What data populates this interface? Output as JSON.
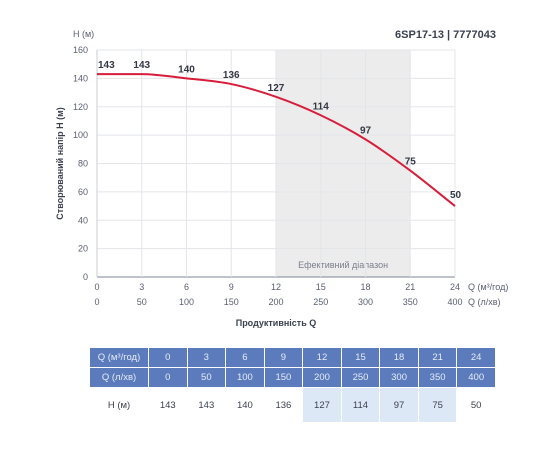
{
  "title": "6SP17-13 | 7777043",
  "chart_data": {
    "type": "line",
    "y_unit_label": "H (м)",
    "ylabel": "Створюваний напір H (м)",
    "xlabel": "Продуктивність Q",
    "x_unit_label_1": "Q (м³/год)",
    "x_unit_label_2": "Q (л/хв)",
    "ylim": [
      0,
      160
    ],
    "y_ticks": [
      "0",
      "20",
      "40",
      "60",
      "80",
      "100",
      "120",
      "140",
      "160"
    ],
    "xlim": [
      0,
      24
    ],
    "x_ticks_1": [
      "0",
      "3",
      "6",
      "9",
      "12",
      "15",
      "18",
      "21",
      "24"
    ],
    "x_ticks_2": [
      "0",
      "50",
      "100",
      "150",
      "200",
      "250",
      "300",
      "350",
      "400"
    ],
    "efficient_range": {
      "from": 12,
      "to": 21,
      "label": "Ефективний діапазон"
    },
    "series": [
      {
        "x": [
          0,
          3,
          6,
          9,
          12,
          15,
          18,
          21,
          24
        ],
        "values": [
          143,
          143,
          140,
          136,
          127,
          114,
          97,
          75,
          50
        ],
        "labels": [
          "143",
          "143",
          "140",
          "136",
          "127",
          "114",
          "97",
          "75",
          "50"
        ],
        "color": "#d81d3b"
      }
    ],
    "grid": true
  },
  "table": {
    "rows": [
      {
        "label": "Q (м³/год)",
        "values": [
          "0",
          "3",
          "6",
          "9",
          "12",
          "15",
          "18",
          "21",
          "24"
        ]
      },
      {
        "label": "Q (л/хв)",
        "values": [
          "0",
          "50",
          "100",
          "150",
          "200",
          "250",
          "300",
          "350",
          "400"
        ]
      },
      {
        "label": "H (м)",
        "values": [
          "143",
          "143",
          "140",
          "136",
          "127",
          "114",
          "97",
          "75",
          "50"
        ]
      }
    ],
    "highlight_columns": [
      4,
      5,
      6,
      7
    ],
    "header_color": "#5b7bbd",
    "highlight_color": "#dde8f7"
  }
}
